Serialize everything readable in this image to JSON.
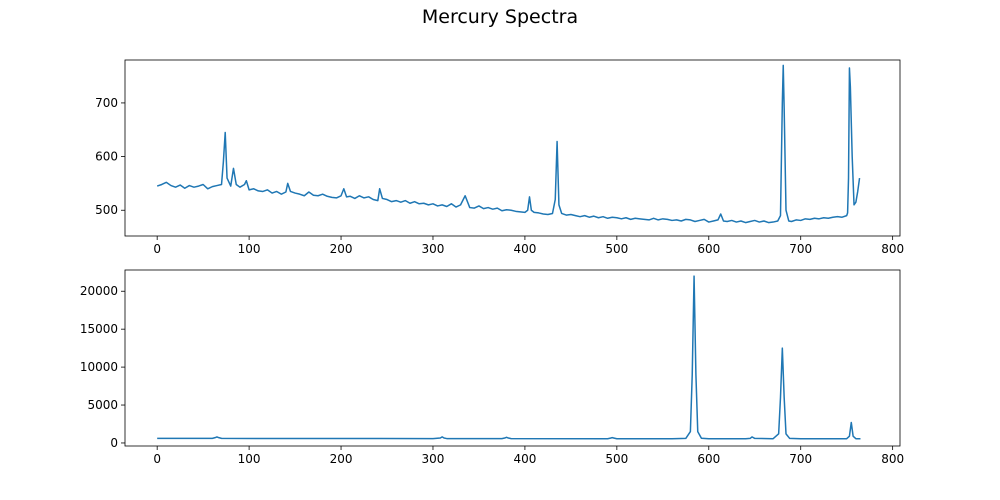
{
  "figure": {
    "title": "Mercury Spectra"
  },
  "chart_data": [
    {
      "type": "line",
      "title": "",
      "xlabel": "",
      "ylabel": "",
      "xlim": [
        -35,
        808
      ],
      "ylim": [
        452,
        780
      ],
      "xticks": [
        0,
        100,
        200,
        300,
        400,
        500,
        600,
        700,
        800
      ],
      "yticks": [
        500,
        600,
        700
      ],
      "grid": false,
      "series": [
        {
          "color": "#1f77b4",
          "x": [
            0,
            5,
            10,
            15,
            20,
            25,
            30,
            35,
            40,
            45,
            50,
            55,
            60,
            65,
            70,
            72,
            74,
            76,
            80,
            83,
            86,
            90,
            95,
            97,
            100,
            105,
            110,
            115,
            120,
            125,
            130,
            135,
            140,
            142,
            145,
            150,
            155,
            160,
            165,
            170,
            175,
            180,
            185,
            190,
            195,
            200,
            203,
            206,
            210,
            215,
            220,
            225,
            230,
            235,
            240,
            242,
            245,
            250,
            255,
            260,
            265,
            270,
            275,
            280,
            285,
            290,
            295,
            300,
            305,
            310,
            315,
            320,
            325,
            330,
            335,
            340,
            345,
            350,
            355,
            360,
            365,
            370,
            375,
            380,
            385,
            390,
            395,
            400,
            403,
            405,
            407,
            410,
            415,
            420,
            425,
            430,
            433,
            435,
            437,
            440,
            445,
            450,
            455,
            460,
            465,
            470,
            475,
            480,
            485,
            490,
            495,
            500,
            505,
            510,
            515,
            520,
            525,
            530,
            535,
            540,
            545,
            550,
            555,
            560,
            565,
            570,
            575,
            580,
            585,
            590,
            595,
            600,
            605,
            610,
            613,
            616,
            620,
            625,
            630,
            635,
            640,
            645,
            650,
            655,
            660,
            665,
            670,
            675,
            678,
            680,
            681,
            682,
            684,
            687,
            690,
            695,
            700,
            705,
            710,
            715,
            720,
            725,
            730,
            735,
            740,
            745,
            750,
            751,
            752,
            753,
            754,
            756,
            758,
            760,
            762,
            764
          ],
          "y": [
            545,
            548,
            552,
            546,
            543,
            547,
            541,
            546,
            543,
            545,
            548,
            540,
            544,
            546,
            548,
            590,
            645,
            560,
            545,
            578,
            548,
            543,
            548,
            555,
            538,
            540,
            536,
            535,
            538,
            532,
            535,
            530,
            534,
            550,
            535,
            532,
            530,
            527,
            534,
            528,
            527,
            530,
            526,
            524,
            523,
            527,
            540,
            525,
            526,
            522,
            527,
            523,
            525,
            520,
            518,
            540,
            522,
            520,
            516,
            518,
            515,
            518,
            513,
            516,
            512,
            513,
            510,
            512,
            508,
            510,
            507,
            512,
            506,
            510,
            527,
            505,
            504,
            508,
            503,
            505,
            502,
            504,
            499,
            501,
            500,
            498,
            497,
            496,
            500,
            525,
            500,
            496,
            495,
            493,
            492,
            494,
            520,
            628,
            510,
            494,
            491,
            492,
            490,
            488,
            490,
            487,
            489,
            486,
            488,
            485,
            487,
            486,
            484,
            486,
            483,
            485,
            484,
            483,
            482,
            485,
            482,
            484,
            483,
            481,
            482,
            480,
            483,
            482,
            479,
            481,
            483,
            478,
            480,
            482,
            493,
            480,
            479,
            481,
            478,
            480,
            477,
            479,
            481,
            478,
            480,
            477,
            478,
            480,
            490,
            700,
            770,
            690,
            500,
            480,
            479,
            482,
            481,
            484,
            483,
            485,
            484,
            486,
            485,
            487,
            488,
            487,
            490,
            495,
            560,
            765,
            730,
            600,
            510,
            515,
            535,
            560
          ]
        }
      ]
    },
    {
      "type": "line",
      "title": "",
      "xlabel": "",
      "ylabel": "",
      "xlim": [
        -35,
        808
      ],
      "ylim": [
        -400,
        22800
      ],
      "xticks": [
        0,
        100,
        200,
        300,
        400,
        500,
        600,
        700,
        800
      ],
      "yticks": [
        0,
        5000,
        10000,
        15000,
        20000
      ],
      "grid": false,
      "series": [
        {
          "color": "#1f77b4",
          "x": [
            0,
            60,
            63,
            65,
            67,
            70,
            150,
            300,
            308,
            310,
            312,
            315,
            375,
            378,
            380,
            382,
            385,
            490,
            493,
            495,
            497,
            500,
            560,
            575,
            580,
            582,
            584,
            586,
            588,
            592,
            600,
            640,
            645,
            647,
            650,
            670,
            676,
            678,
            680,
            682,
            684,
            688,
            700,
            750,
            753,
            755,
            757,
            760,
            765
          ],
          "y": [
            600,
            600,
            700,
            800,
            700,
            600,
            590,
            580,
            650,
            800,
            650,
            580,
            570,
            650,
            750,
            650,
            570,
            560,
            640,
            700,
            640,
            560,
            550,
            600,
            1500,
            9000,
            22000,
            9000,
            1500,
            620,
            560,
            560,
            600,
            800,
            600,
            560,
            1200,
            6000,
            12500,
            6000,
            1200,
            600,
            560,
            560,
            900,
            2700,
            900,
            560,
            560
          ]
        }
      ]
    }
  ]
}
